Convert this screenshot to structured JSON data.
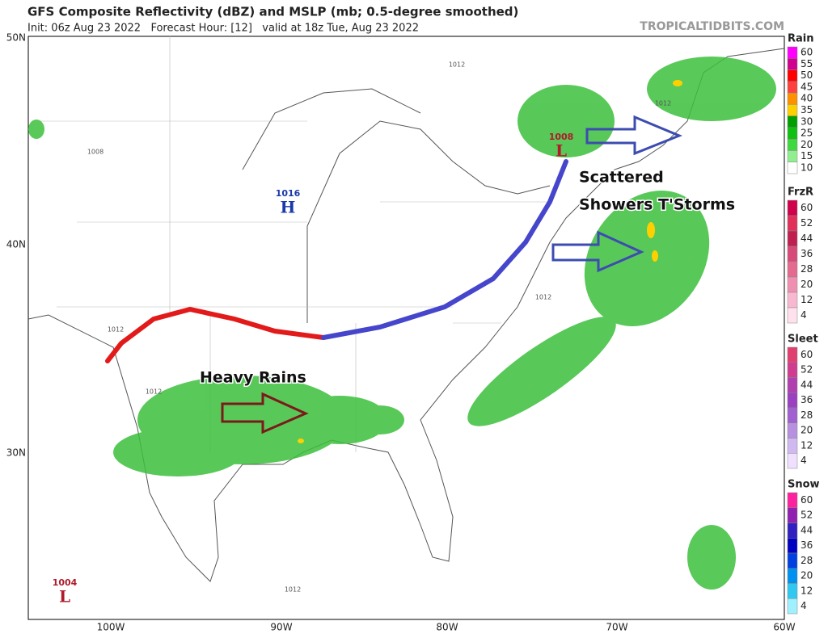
{
  "header": {
    "title": "GFS Composite Reflectivity (dBZ) and MSLP (mb; 0.5-degree smoothed)",
    "subtitle": "Init: 06z Aug 23 2022   Forecast Hour: [12]   valid at 18z Tue, Aug 23 2022",
    "credit": "TROPICALTIDBITS.COM"
  },
  "map": {
    "lat_labels": [
      "50N",
      "40N",
      "30N"
    ],
    "lon_labels": [
      "100W",
      "90W",
      "80W",
      "70W",
      "60W"
    ],
    "pressure_centers": [
      {
        "value": "1016",
        "letter": "H"
      },
      {
        "value": "1008",
        "letter": "L"
      },
      {
        "value": "1004",
        "letter": "L"
      }
    ],
    "isobar_labels": [
      "1012",
      "1012",
      "1008",
      "1012",
      "1012",
      "1012",
      "1012"
    ],
    "annotations": [
      "Heavy Rains",
      "Scattered",
      "Showers T'Storms"
    ]
  },
  "legends": [
    {
      "title": "Rain",
      "ticks": [
        60,
        55,
        50,
        45,
        40,
        35,
        30,
        25,
        20,
        15,
        10
      ],
      "colors": [
        "#ff00ff",
        "#d00090",
        "#ff0000",
        "#ff4040",
        "#ff9000",
        "#ffd000",
        "#00a000",
        "#10c010",
        "#40d840",
        "#90ee90",
        "#ffffff"
      ]
    },
    {
      "title": "FrzR",
      "ticks": [
        60,
        52,
        44,
        36,
        28,
        20,
        12,
        4
      ],
      "colors": [
        "#d0004a",
        "#e0305a",
        "#c02050",
        "#d84a78",
        "#e46a90",
        "#f090b0",
        "#f8b8d0",
        "#ffe0ec"
      ]
    },
    {
      "title": "Sleet",
      "ticks": [
        60,
        52,
        44,
        36,
        28,
        20,
        12,
        4
      ],
      "colors": [
        "#e04070",
        "#d03c90",
        "#b040b0",
        "#9a40c0",
        "#a060d0",
        "#b890e0",
        "#d0b8f0",
        "#efe0ff"
      ]
    },
    {
      "title": "Snow",
      "ticks": [
        60,
        52,
        44,
        36,
        28,
        20,
        12,
        4
      ],
      "colors": [
        "#ff20a0",
        "#9020b0",
        "#3020c0",
        "#0000c0",
        "#0040e0",
        "#0090f0",
        "#30c8f0",
        "#a0f0ff"
      ]
    }
  ]
}
